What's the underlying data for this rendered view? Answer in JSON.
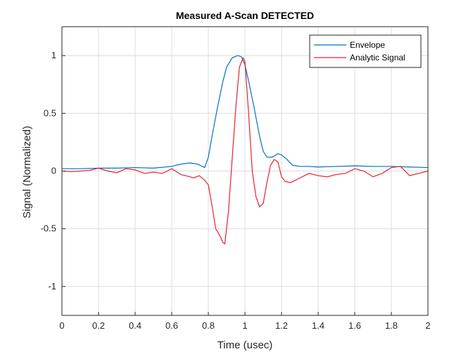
{
  "chart_data": {
    "type": "line",
    "title": "Measured A-Scan  DETECTED",
    "xlabel": "Time (usec)",
    "ylabel": "Signal (Normalized)",
    "xlim": [
      0,
      2
    ],
    "ylim": [
      -1.25,
      1.25
    ],
    "xticks": [
      0,
      0.2,
      0.4,
      0.6,
      0.8,
      1,
      1.2,
      1.4,
      1.6,
      1.8,
      2
    ],
    "xtick_labels": [
      "0",
      "0.2",
      "0.4",
      "0.6",
      "0.8",
      "1",
      "1.2",
      "1.4",
      "1.6",
      "1.8",
      "2"
    ],
    "yticks": [
      -1,
      -0.5,
      0,
      0.5,
      1
    ],
    "ytick_labels": [
      "-1",
      "-0.5",
      "0",
      "0.5",
      "1"
    ],
    "grid": true,
    "legend_position": "top-right",
    "series": [
      {
        "name": "Envelope",
        "color": "#0072bd",
        "x": [
          0,
          0.1,
          0.2,
          0.3,
          0.4,
          0.5,
          0.6,
          0.65,
          0.7,
          0.74,
          0.78,
          0.8,
          0.82,
          0.85,
          0.88,
          0.9,
          0.93,
          0.96,
          0.98,
          1.0,
          1.02,
          1.05,
          1.08,
          1.1,
          1.12,
          1.15,
          1.18,
          1.2,
          1.23,
          1.26,
          1.3,
          1.35,
          1.4,
          1.5,
          1.6,
          1.7,
          1.8,
          1.9,
          2.0
        ],
        "y": [
          0.02,
          0.02,
          0.025,
          0.025,
          0.03,
          0.025,
          0.04,
          0.06,
          0.07,
          0.06,
          0.03,
          0.12,
          0.3,
          0.55,
          0.78,
          0.9,
          0.98,
          1.0,
          0.99,
          0.92,
          0.78,
          0.55,
          0.3,
          0.17,
          0.12,
          0.12,
          0.15,
          0.14,
          0.1,
          0.05,
          0.04,
          0.04,
          0.035,
          0.04,
          0.045,
          0.04,
          0.04,
          0.035,
          0.03
        ]
      },
      {
        "name": "Analytic Signal",
        "color": "#e8202f",
        "x": [
          0,
          0.05,
          0.1,
          0.15,
          0.2,
          0.25,
          0.3,
          0.35,
          0.4,
          0.45,
          0.5,
          0.55,
          0.6,
          0.65,
          0.7,
          0.72,
          0.75,
          0.78,
          0.8,
          0.82,
          0.84,
          0.86,
          0.88,
          0.89,
          0.91,
          0.93,
          0.95,
          0.97,
          0.99,
          1.0,
          1.02,
          1.04,
          1.06,
          1.08,
          1.1,
          1.12,
          1.14,
          1.16,
          1.18,
          1.2,
          1.22,
          1.25,
          1.3,
          1.35,
          1.4,
          1.45,
          1.5,
          1.55,
          1.6,
          1.65,
          1.7,
          1.75,
          1.8,
          1.85,
          1.9,
          1.95,
          2.0
        ],
        "y": [
          0.0,
          -0.005,
          0.0,
          0.005,
          0.025,
          0.0,
          -0.015,
          0.02,
          0.01,
          -0.02,
          -0.01,
          -0.02,
          0.02,
          -0.03,
          -0.05,
          -0.06,
          -0.04,
          -0.08,
          -0.12,
          -0.3,
          -0.5,
          -0.55,
          -0.62,
          -0.63,
          -0.35,
          0.1,
          0.55,
          0.9,
          0.98,
          0.95,
          0.5,
          0.0,
          -0.22,
          -0.31,
          -0.28,
          -0.1,
          0.05,
          0.1,
          0.08,
          -0.05,
          -0.09,
          -0.1,
          -0.06,
          -0.02,
          -0.04,
          -0.05,
          -0.03,
          -0.02,
          0.02,
          0.0,
          -0.05,
          -0.02,
          0.03,
          0.04,
          -0.04,
          -0.02,
          0.0
        ]
      }
    ]
  }
}
